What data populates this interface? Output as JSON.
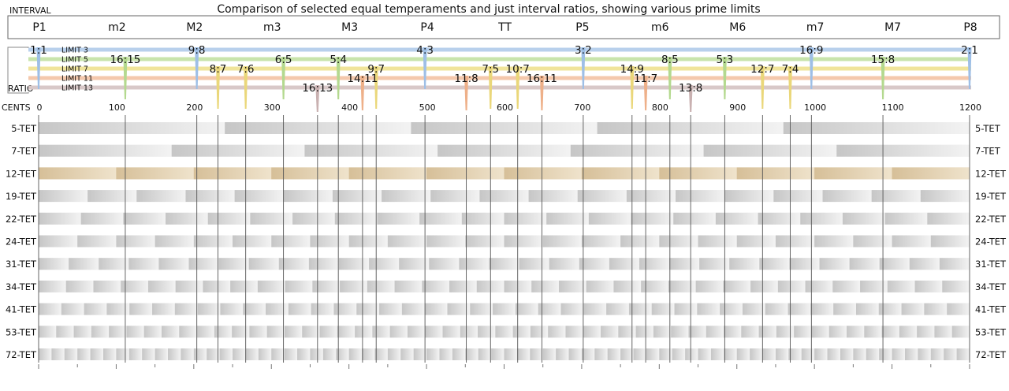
{
  "title": "Comparison of selected equal temperaments and just interval ratios, showing various prime limits",
  "header": {
    "interval_label": "INTERVAL",
    "ratio_label": "RATIO",
    "cents_label": "CENTS"
  },
  "intervals": [
    "P1",
    "m2",
    "M2",
    "m3",
    "M3",
    "P4",
    "TT",
    "P5",
    "m6",
    "M6",
    "m7",
    "M7",
    "P8"
  ],
  "cents_ticks": [
    0,
    100,
    200,
    300,
    400,
    500,
    600,
    700,
    800,
    900,
    1000,
    1100,
    1200
  ],
  "limits": [
    {
      "name": "LIMIT 3",
      "color": "#b8d0ec"
    },
    {
      "name": "LIMIT 5",
      "color": "#c8e4ac"
    },
    {
      "name": "LIMIT 7",
      "color": "#f0e49a"
    },
    {
      "name": "LIMIT 11",
      "color": "#f4c8ac"
    },
    {
      "name": "LIMIT 13",
      "color": "#d8c8c8"
    }
  ],
  "ratios": [
    {
      "label": "1:1",
      "cents": 0,
      "limit": 0
    },
    {
      "label": "9:8",
      "cents": 203.9,
      "limit": 0
    },
    {
      "label": "4:3",
      "cents": 498.0,
      "limit": 0
    },
    {
      "label": "3:2",
      "cents": 702.0,
      "limit": 0
    },
    {
      "label": "16:9",
      "cents": 996.1,
      "limit": 0
    },
    {
      "label": "2:1",
      "cents": 1200,
      "limit": 0
    },
    {
      "label": "16:15",
      "cents": 111.7,
      "limit": 1
    },
    {
      "label": "6:5",
      "cents": 315.6,
      "limit": 1
    },
    {
      "label": "5:4",
      "cents": 386.3,
      "limit": 1
    },
    {
      "label": "8:5",
      "cents": 813.7,
      "limit": 1
    },
    {
      "label": "5:3",
      "cents": 884.4,
      "limit": 1
    },
    {
      "label": "15:8",
      "cents": 1088.3,
      "limit": 1
    },
    {
      "label": "8:7",
      "cents": 231.2,
      "limit": 2
    },
    {
      "label": "7:6",
      "cents": 266.9,
      "limit": 2
    },
    {
      "label": "9:7",
      "cents": 435.1,
      "limit": 2
    },
    {
      "label": "7:5",
      "cents": 582.5,
      "limit": 2
    },
    {
      "label": "10:7",
      "cents": 617.5,
      "limit": 2
    },
    {
      "label": "14:9",
      "cents": 764.9,
      "limit": 2
    },
    {
      "label": "12:7",
      "cents": 933.1,
      "limit": 2
    },
    {
      "label": "7:4",
      "cents": 968.8,
      "limit": 2
    },
    {
      "label": "14:11",
      "cents": 417.5,
      "limit": 3
    },
    {
      "label": "11:8",
      "cents": 551.3,
      "limit": 3
    },
    {
      "label": "16:11",
      "cents": 648.7,
      "limit": 3
    },
    {
      "label": "11:7",
      "cents": 782.5,
      "limit": 3
    },
    {
      "label": "16:13",
      "cents": 359.5,
      "limit": 4
    },
    {
      "label": "13:8",
      "cents": 840.5,
      "limit": 4
    }
  ],
  "temperaments": [
    {
      "name": "5-TET",
      "divisions": 5
    },
    {
      "name": "7-TET",
      "divisions": 7
    },
    {
      "name": "12-TET",
      "divisions": 12,
      "highlight": "#e6d6b8"
    },
    {
      "name": "19-TET",
      "divisions": 19
    },
    {
      "name": "22-TET",
      "divisions": 22
    },
    {
      "name": "24-TET",
      "divisions": 24
    },
    {
      "name": "31-TET",
      "divisions": 31
    },
    {
      "name": "34-TET",
      "divisions": 34
    },
    {
      "name": "41-TET",
      "divisions": 41
    },
    {
      "name": "53-TET",
      "divisions": 53
    },
    {
      "name": "72-TET",
      "divisions": 72
    }
  ]
}
